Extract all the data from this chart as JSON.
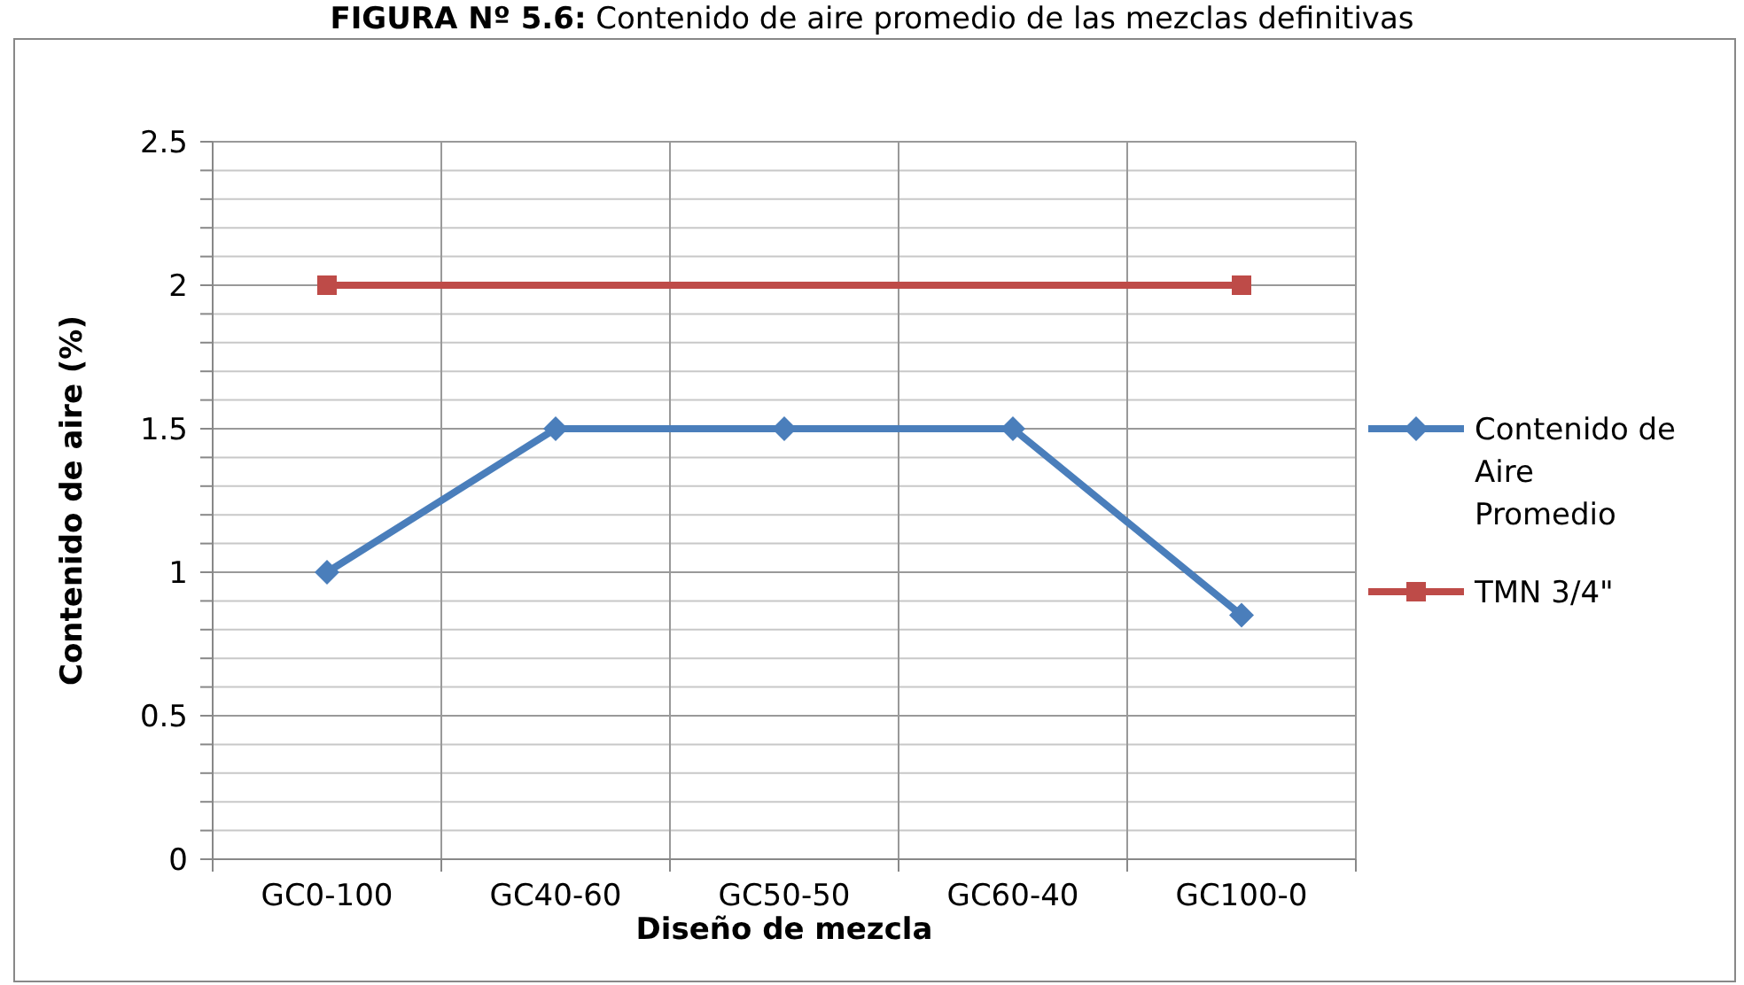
{
  "chart_data": {
    "type": "line",
    "title": "FIGURA Nº 5.6: Contenido de aire promedio de las mezclas definitivas",
    "xlabel": "Diseño de mezcla",
    "ylabel": "Contenido de aire (%)",
    "categories": [
      "GC0-100",
      "GC40-60",
      "GC50-50",
      "GC60-40",
      "GC100-0"
    ],
    "series": [
      {
        "name": "Contenido de Aire Promedio",
        "color": "#4a7ebb",
        "values": [
          1,
          1.5,
          1.5,
          1.5,
          0.85
        ],
        "marker": "diamond"
      },
      {
        "name": "TMN 3/4\"",
        "color": "#be4b48",
        "values": [
          2,
          null,
          null,
          null,
          2
        ],
        "marker": "square"
      }
    ],
    "ylim": [
      0,
      2.5
    ],
    "yticks": [
      0,
      {
        "value": 0.1,
        "label": null
      },
      {
        "value": 0.2,
        "label": null
      },
      {
        "value": 0.3,
        "label": null
      },
      {
        "value": 0.4,
        "label": null
      },
      0.5,
      {
        "value": 0.6,
        "label": null
      },
      {
        "value": 0.7,
        "label": null
      },
      {
        "value": 0.8,
        "label": null
      },
      {
        "value": 0.9,
        "label": null
      },
      1,
      {
        "value": 1.1,
        "label": null
      },
      {
        "value": 1.2,
        "label": null
      },
      {
        "value": 1.3,
        "label": null
      },
      {
        "value": 1.4,
        "label": null
      },
      1.5,
      {
        "value": 1.6,
        "label": null
      },
      {
        "value": 1.7,
        "label": null
      },
      {
        "value": 1.8,
        "label": null
      },
      {
        "value": 1.9,
        "label": null
      },
      2,
      {
        "value": 2.1,
        "label": null
      },
      {
        "value": 2.2,
        "label": null
      },
      {
        "value": 2.3,
        "label": null
      },
      {
        "value": 2.4,
        "label": null
      },
      2.5
    ],
    "grid": true,
    "legend": "right",
    "line_style": "solid"
  }
}
